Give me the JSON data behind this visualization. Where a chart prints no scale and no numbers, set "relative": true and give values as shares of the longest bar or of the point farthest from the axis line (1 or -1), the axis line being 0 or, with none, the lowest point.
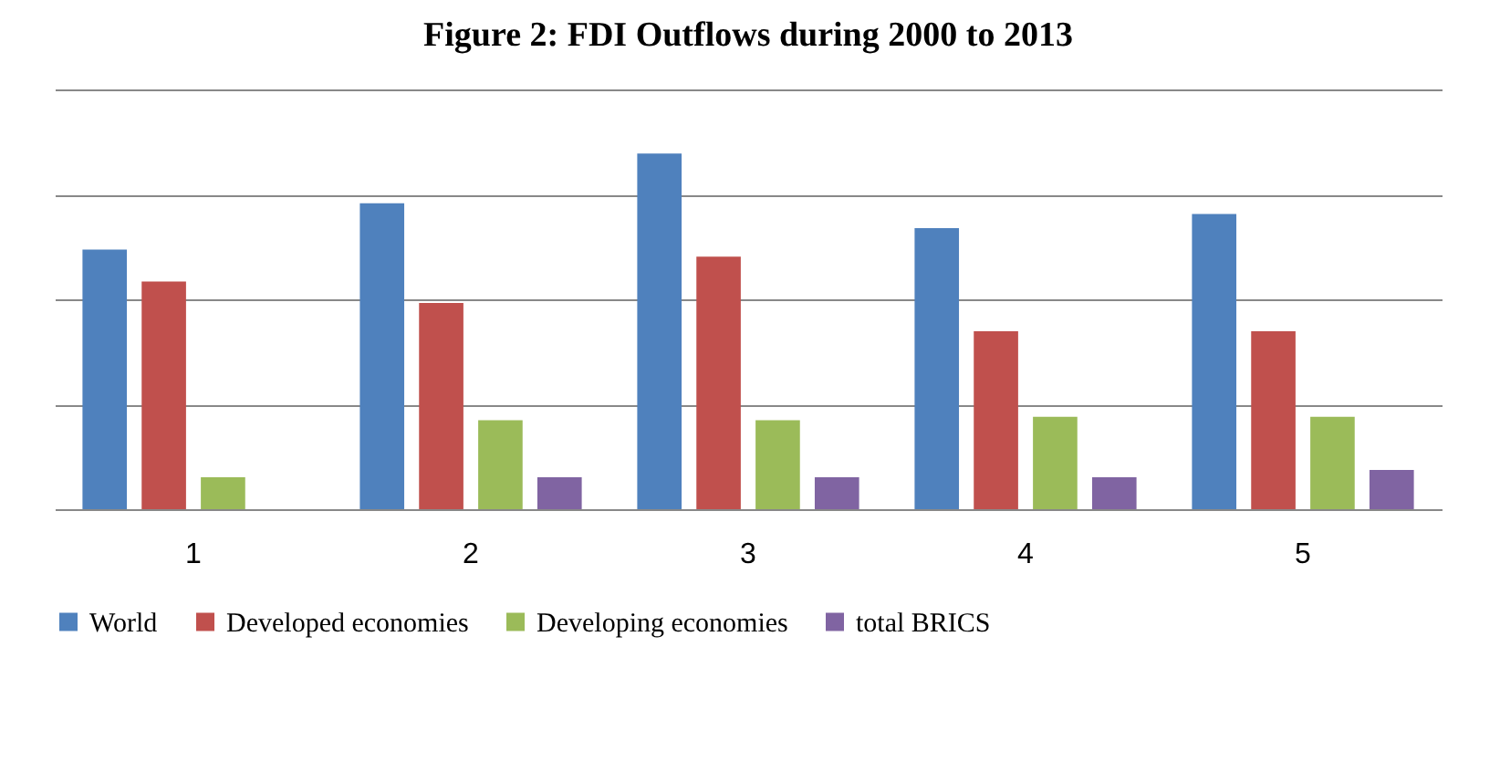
{
  "chart_data": {
    "type": "bar",
    "title": "Figure 2: FDI Outflows during 2000 to 2013",
    "relative": true,
    "grid": "y",
    "legend": "bottom",
    "categories": [
      "1",
      "2",
      "3",
      "4",
      "5"
    ],
    "series": [
      {
        "name": "World",
        "color": "#4f81bd",
        "values": [
          0.73,
          0.86,
          1,
          0.79,
          0.83
        ]
      },
      {
        "name": "Developed economies",
        "color": "#c0504d",
        "values": [
          0.64,
          0.58,
          0.71,
          0.5,
          0.5
        ]
      },
      {
        "name": "Developing economies",
        "color": "#9bbb59",
        "values": [
          0.09,
          0.25,
          0.25,
          0.26,
          0.26
        ]
      },
      {
        "name": "total BRICS",
        "color": "#8064a2",
        "values": [
          null,
          0.09,
          0.09,
          0.09,
          0.11
        ]
      }
    ]
  }
}
